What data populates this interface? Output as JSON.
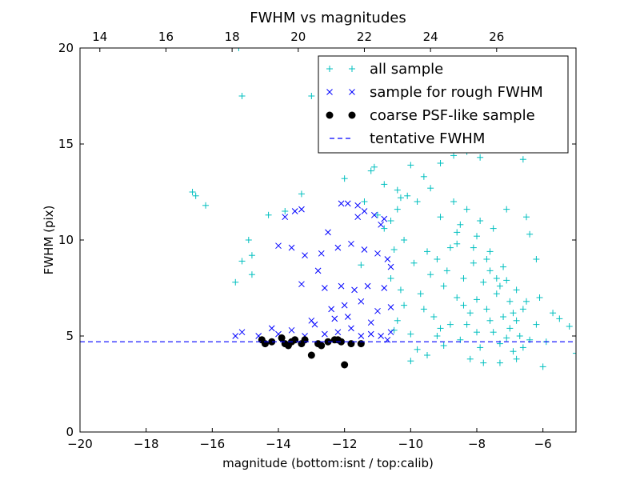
{
  "chart_data": {
    "type": "scatter",
    "title": "FWHM vs magnitudes",
    "xlabel": "magnitude (bottom:isnt / top:calib)",
    "ylabel": "FWHM (pix)",
    "xlim": [
      -20,
      -5
    ],
    "ylim": [
      0,
      20
    ],
    "x_ticks": [
      -20,
      -18,
      -16,
      -14,
      -12,
      -10,
      -8,
      -6
    ],
    "x_tick_labels": [
      "−20",
      "−18",
      "−16",
      "−14",
      "−12",
      "−10",
      "−8",
      "−6"
    ],
    "y_ticks": [
      0,
      5,
      10,
      15,
      20
    ],
    "y_tick_labels": [
      "0",
      "5",
      "10",
      "15",
      "20"
    ],
    "top_axis": {
      "offset": 33.4,
      "ticks": [
        14,
        16,
        18,
        20,
        22,
        24,
        26
      ],
      "tick_labels": [
        "14",
        "16",
        "18",
        "20",
        "22",
        "24",
        "26"
      ]
    },
    "legend": {
      "placement": "upper-right"
    },
    "grid": false,
    "series": [
      {
        "name": "all sample",
        "marker": "plus",
        "color": "#00bfbf",
        "points": [
          [
            -15.2,
            20.0
          ],
          [
            -15.1,
            17.5
          ],
          [
            -13.0,
            17.5
          ],
          [
            -12.2,
            15.5
          ],
          [
            -12.0,
            16.0
          ],
          [
            -11.5,
            16.5
          ],
          [
            -16.6,
            12.5
          ],
          [
            -16.5,
            12.3
          ],
          [
            -16.2,
            11.8
          ],
          [
            -14.3,
            11.3
          ],
          [
            -13.8,
            11.5
          ],
          [
            -13.3,
            12.4
          ],
          [
            -12.0,
            13.2
          ],
          [
            -11.2,
            13.6
          ],
          [
            -10.8,
            12.9
          ],
          [
            -10.4,
            12.6
          ],
          [
            -10.1,
            12.3
          ],
          [
            -11.4,
            12.0
          ],
          [
            -11.0,
            11.3
          ],
          [
            -10.6,
            11.0
          ],
          [
            -10.8,
            10.6
          ],
          [
            -10.2,
            10.0
          ],
          [
            -14.9,
            10.0
          ],
          [
            -14.8,
            9.2
          ],
          [
            -15.1,
            8.9
          ],
          [
            -14.8,
            8.2
          ],
          [
            -15.3,
            7.8
          ],
          [
            -10.0,
            3.7
          ],
          [
            -11.1,
            13.8
          ],
          [
            -10.0,
            13.9
          ],
          [
            -9.6,
            13.3
          ],
          [
            -9.1,
            14.0
          ],
          [
            -8.7,
            14.4
          ],
          [
            -8.3,
            14.6
          ],
          [
            -7.9,
            14.3
          ],
          [
            -6.6,
            14.2
          ],
          [
            -6.4,
            10.3
          ],
          [
            -6.2,
            9.0
          ],
          [
            -6.1,
            7.0
          ],
          [
            -5.7,
            6.2
          ],
          [
            -5.5,
            5.9
          ],
          [
            -5.2,
            5.5
          ],
          [
            -5.0,
            4.1
          ],
          [
            -5.9,
            4.7
          ],
          [
            -6.0,
            3.4
          ],
          [
            -6.8,
            3.8
          ],
          [
            -7.3,
            3.6
          ],
          [
            -7.8,
            3.6
          ],
          [
            -8.2,
            3.8
          ],
          [
            -9.0,
            4.5
          ],
          [
            -6.5,
            11.2
          ],
          [
            -7.1,
            11.6
          ],
          [
            -9.4,
            12.7
          ],
          [
            -9.8,
            12.0
          ],
          [
            -10.3,
            12.2
          ],
          [
            -10.4,
            11.6
          ],
          [
            -10.5,
            9.5
          ],
          [
            -10.6,
            8.0
          ],
          [
            -10.3,
            7.4
          ],
          [
            -10.2,
            6.6
          ],
          [
            -10.4,
            5.8
          ],
          [
            -10.5,
            5.3
          ],
          [
            -10.0,
            5.1
          ],
          [
            -9.8,
            4.3
          ],
          [
            -9.5,
            4.0
          ],
          [
            -11.5,
            8.7
          ],
          [
            -8.5,
            10.8
          ],
          [
            -8.0,
            10.2
          ],
          [
            -7.6,
            9.4
          ],
          [
            -7.2,
            8.6
          ],
          [
            -8.8,
            9.6
          ],
          [
            -9.2,
            9.0
          ],
          [
            -8.4,
            8.0
          ],
          [
            -7.8,
            7.8
          ],
          [
            -7.4,
            7.2
          ],
          [
            -7.0,
            6.8
          ],
          [
            -6.6,
            6.4
          ],
          [
            -8.6,
            7.0
          ],
          [
            -9.0,
            7.6
          ],
          [
            -9.4,
            8.2
          ],
          [
            -9.7,
            7.2
          ],
          [
            -8.2,
            6.2
          ],
          [
            -7.6,
            5.8
          ],
          [
            -7.0,
            5.4
          ],
          [
            -6.7,
            5.0
          ],
          [
            -8.0,
            5.2
          ],
          [
            -8.8,
            5.6
          ],
          [
            -9.3,
            6.0
          ],
          [
            -7.3,
            4.6
          ],
          [
            -6.9,
            4.2
          ],
          [
            -7.9,
            4.4
          ],
          [
            -8.5,
            4.8
          ],
          [
            -9.2,
            5.0
          ],
          [
            -8.1,
            8.8
          ],
          [
            -7.4,
            8.0
          ],
          [
            -6.8,
            7.4
          ],
          [
            -8.7,
            12.0
          ],
          [
            -8.3,
            11.6
          ],
          [
            -7.9,
            11.0
          ],
          [
            -7.5,
            10.6
          ],
          [
            -9.1,
            11.2
          ],
          [
            -8.6,
            9.8
          ],
          [
            -7.7,
            9.0
          ],
          [
            -7.1,
            7.9
          ],
          [
            -6.5,
            6.8
          ],
          [
            -6.2,
            5.6
          ],
          [
            -8.4,
            6.6
          ],
          [
            -7.7,
            6.4
          ],
          [
            -7.2,
            6.0
          ],
          [
            -6.4,
            4.8
          ],
          [
            -8.9,
            8.4
          ],
          [
            -9.5,
            9.4
          ],
          [
            -9.9,
            8.8
          ],
          [
            -9.6,
            6.4
          ],
          [
            -9.1,
            5.4
          ],
          [
            -8.3,
            5.6
          ],
          [
            -7.5,
            5.2
          ],
          [
            -7.1,
            4.9
          ],
          [
            -6.6,
            4.4
          ],
          [
            -8.0,
            6.9
          ],
          [
            -7.3,
            7.6
          ],
          [
            -6.9,
            6.2
          ],
          [
            -8.6,
            10.4
          ],
          [
            -8.1,
            9.6
          ],
          [
            -7.6,
            8.4
          ],
          [
            -6.8,
            5.8
          ]
        ]
      },
      {
        "name": "sample for rough FWHM",
        "marker": "x",
        "color": "#0000ff",
        "points": [
          [
            -15.3,
            5.0
          ],
          [
            -15.1,
            5.2
          ],
          [
            -14.2,
            5.4
          ],
          [
            -14.0,
            5.1
          ],
          [
            -13.6,
            5.3
          ],
          [
            -13.2,
            5.0
          ],
          [
            -12.9,
            5.6
          ],
          [
            -12.6,
            5.1
          ],
          [
            -12.2,
            5.2
          ],
          [
            -11.8,
            5.4
          ],
          [
            -11.5,
            5.0
          ],
          [
            -11.2,
            5.1
          ],
          [
            -10.9,
            5.0
          ],
          [
            -10.7,
            4.8
          ],
          [
            -10.6,
            5.2
          ],
          [
            -13.8,
            11.2
          ],
          [
            -13.5,
            11.5
          ],
          [
            -13.3,
            11.6
          ],
          [
            -12.1,
            11.9
          ],
          [
            -11.9,
            11.9
          ],
          [
            -11.6,
            11.8
          ],
          [
            -11.4,
            11.5
          ],
          [
            -11.1,
            11.3
          ],
          [
            -10.8,
            11.1
          ],
          [
            -14.0,
            9.7
          ],
          [
            -13.6,
            9.6
          ],
          [
            -13.2,
            9.2
          ],
          [
            -12.7,
            9.3
          ],
          [
            -12.2,
            9.6
          ],
          [
            -11.8,
            9.8
          ],
          [
            -11.4,
            9.5
          ],
          [
            -11.0,
            9.3
          ],
          [
            -10.7,
            9.0
          ],
          [
            -13.3,
            7.7
          ],
          [
            -12.6,
            7.5
          ],
          [
            -12.1,
            7.6
          ],
          [
            -11.7,
            7.4
          ],
          [
            -11.3,
            7.6
          ],
          [
            -10.8,
            7.5
          ],
          [
            -12.4,
            6.4
          ],
          [
            -12.0,
            6.6
          ],
          [
            -11.5,
            6.8
          ],
          [
            -11.0,
            6.3
          ],
          [
            -10.6,
            6.5
          ],
          [
            -13.0,
            5.8
          ],
          [
            -12.3,
            5.9
          ],
          [
            -11.9,
            6.0
          ],
          [
            -11.2,
            5.7
          ],
          [
            -14.6,
            5.0
          ],
          [
            -11.6,
            11.2
          ],
          [
            -12.5,
            10.4
          ],
          [
            -10.9,
            10.8
          ],
          [
            -10.6,
            8.6
          ],
          [
            -12.8,
            8.4
          ]
        ]
      },
      {
        "name": "coarse PSF-like sample",
        "marker": "circle",
        "color": "#000000",
        "points": [
          [
            -14.5,
            4.8
          ],
          [
            -14.4,
            4.6
          ],
          [
            -14.2,
            4.7
          ],
          [
            -13.9,
            4.9
          ],
          [
            -13.7,
            4.5
          ],
          [
            -13.6,
            4.7
          ],
          [
            -13.5,
            4.8
          ],
          [
            -13.3,
            4.6
          ],
          [
            -13.2,
            4.8
          ],
          [
            -13.0,
            4.0
          ],
          [
            -12.8,
            4.6
          ],
          [
            -12.5,
            4.7
          ],
          [
            -12.3,
            4.8
          ],
          [
            -12.1,
            4.7
          ],
          [
            -12.0,
            3.5
          ],
          [
            -11.8,
            4.6
          ],
          [
            -11.5,
            4.6
          ],
          [
            -12.7,
            4.5
          ],
          [
            -13.8,
            4.6
          ],
          [
            -12.2,
            4.8
          ]
        ]
      },
      {
        "name": "tentative FWHM",
        "marker": "dashed-line",
        "color": "#0000ff",
        "y_value": 4.7
      }
    ]
  }
}
